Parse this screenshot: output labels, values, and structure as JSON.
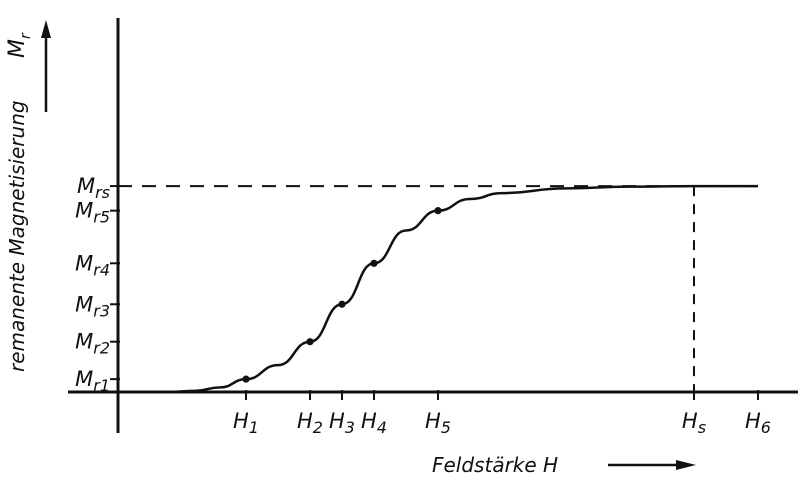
{
  "chart_data": {
    "type": "line",
    "title": "",
    "xlabel": "Feldstärke H",
    "ylabel": "remanente Magnetisierung",
    "ylabel_symbol": "Mr",
    "x_tick_labels": [
      "H1",
      "H2",
      "H3",
      "H4",
      "H5",
      "Hs",
      "H6"
    ],
    "y_tick_labels": [
      "Mr1",
      "Mr2",
      "Mr3",
      "Mr4",
      "Mr5",
      "Mrs"
    ],
    "x_ticks": [
      1.0,
      1.5,
      1.75,
      2.0,
      2.5,
      4.5,
      5.0
    ],
    "y_ticks": [
      0.11,
      0.43,
      0.75,
      1.1,
      1.55,
      1.76
    ],
    "xlim": [
      0,
      5.4
    ],
    "ylim": [
      0,
      3.2
    ],
    "marked_points": [
      {
        "x": 1.0,
        "y": 0.11
      },
      {
        "x": 1.5,
        "y": 0.43
      },
      {
        "x": 1.75,
        "y": 0.75
      },
      {
        "x": 2.0,
        "y": 1.1
      },
      {
        "x": 2.5,
        "y": 1.55
      }
    ],
    "curve": {
      "x": [
        0,
        0.4,
        0.6,
        0.8,
        1.0,
        1.25,
        1.5,
        1.75,
        2.0,
        2.25,
        2.5,
        2.75,
        3.0,
        3.5,
        4.0,
        4.5,
        5.0
      ],
      "y": [
        0,
        0,
        0.01,
        0.04,
        0.11,
        0.23,
        0.43,
        0.75,
        1.1,
        1.38,
        1.55,
        1.65,
        1.7,
        1.74,
        1.755,
        1.76,
        1.76
      ]
    },
    "saturation_level": 1.76,
    "saturation_field": 4.5,
    "reference_lines": "dashed",
    "grid": false,
    "legend": "none"
  }
}
